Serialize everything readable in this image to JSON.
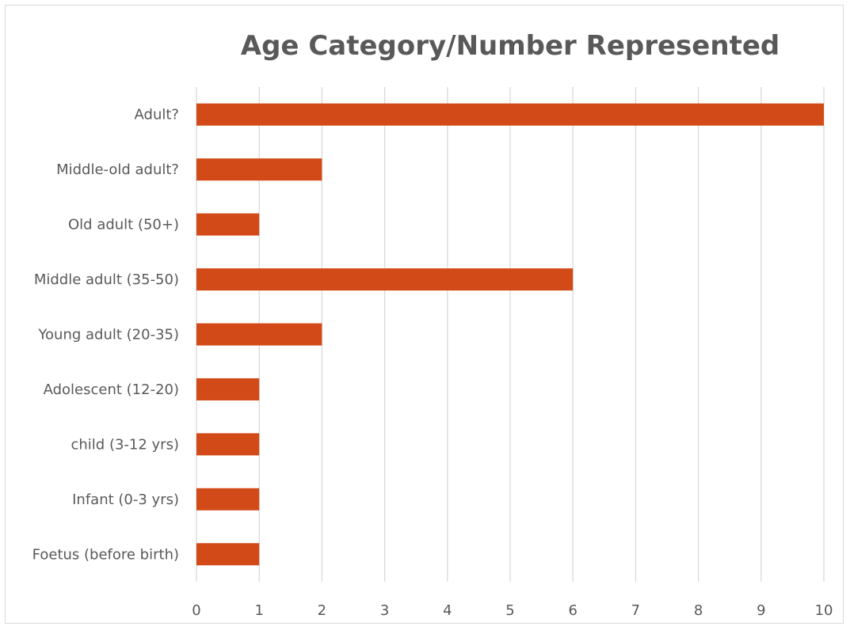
{
  "chart_data": {
    "type": "bar",
    "orientation": "horizontal",
    "title": "Age Category/Number Represented",
    "xlabel": "",
    "ylabel": "",
    "categories": [
      "Adult?",
      "Middle-old adult?",
      "Old adult (50+)",
      "Middle adult (35-50)",
      "Young adult (20-35)",
      "Adolescent (12-20)",
      "child (3-12 yrs)",
      "Infant (0-3 yrs)",
      "Foetus (before birth)"
    ],
    "values": [
      10,
      2,
      1,
      6,
      2,
      1,
      1,
      1,
      1
    ],
    "xlim": [
      0,
      10
    ],
    "x_ticks": [
      "0",
      "1",
      "2",
      "3",
      "4",
      "5",
      "6",
      "7",
      "8",
      "9",
      "10"
    ],
    "grid": "vertical",
    "legend": "none",
    "bar_color": "#D24A17",
    "grid_color": "#d9d9d9"
  }
}
